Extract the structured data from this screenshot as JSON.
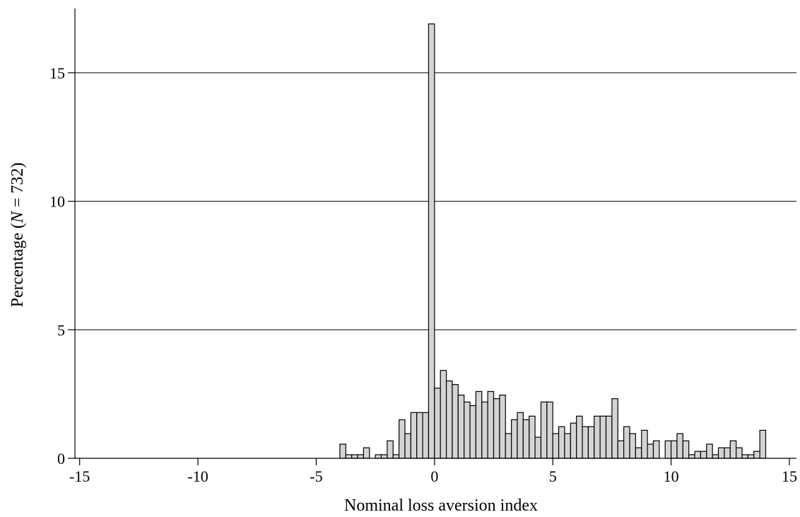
{
  "chart_data": {
    "type": "bar",
    "xlabel": "Nominal loss aversion index",
    "ylabel_parts": [
      "Percentage (",
      "N",
      " = 732)"
    ],
    "xlim": [
      -15.2,
      15.3
    ],
    "ylim": [
      0,
      17.5
    ],
    "x_ticks": [
      -15,
      -10,
      -5,
      0,
      5,
      10,
      15
    ],
    "y_ticks": [
      0,
      5,
      10,
      15
    ],
    "grid": "horizontal",
    "bin_width": 0.25,
    "colors": {
      "bar_fill": "#d4d4d4",
      "bar_edge": "#000000"
    },
    "bins": [
      [
        -3.875,
        0.55
      ],
      [
        -3.625,
        0.14
      ],
      [
        -3.375,
        0.14
      ],
      [
        -3.125,
        0.14
      ],
      [
        -2.875,
        0.41
      ],
      [
        -2.375,
        0.14
      ],
      [
        -2.125,
        0.14
      ],
      [
        -1.875,
        0.68
      ],
      [
        -1.625,
        0.14
      ],
      [
        -1.375,
        1.5
      ],
      [
        -1.125,
        0.96
      ],
      [
        -0.875,
        1.78
      ],
      [
        -0.625,
        1.78
      ],
      [
        -0.375,
        1.78
      ],
      [
        -0.125,
        16.9
      ],
      [
        0.125,
        2.73
      ],
      [
        0.375,
        3.42
      ],
      [
        0.625,
        3.01
      ],
      [
        0.875,
        2.87
      ],
      [
        1.125,
        2.46
      ],
      [
        1.375,
        2.19
      ],
      [
        1.625,
        2.05
      ],
      [
        1.875,
        2.6
      ],
      [
        2.125,
        2.19
      ],
      [
        2.375,
        2.6
      ],
      [
        2.625,
        2.32
      ],
      [
        2.875,
        2.46
      ],
      [
        3.125,
        0.96
      ],
      [
        3.375,
        1.5
      ],
      [
        3.625,
        1.78
      ],
      [
        3.875,
        1.5
      ],
      [
        4.125,
        1.64
      ],
      [
        4.375,
        0.82
      ],
      [
        4.625,
        2.19
      ],
      [
        4.875,
        2.19
      ],
      [
        5.125,
        0.96
      ],
      [
        5.375,
        1.23
      ],
      [
        5.625,
        0.96
      ],
      [
        5.875,
        1.37
      ],
      [
        6.125,
        1.64
      ],
      [
        6.375,
        1.23
      ],
      [
        6.625,
        1.23
      ],
      [
        6.875,
        1.64
      ],
      [
        7.125,
        1.64
      ],
      [
        7.375,
        1.64
      ],
      [
        7.625,
        2.32
      ],
      [
        7.875,
        0.68
      ],
      [
        8.125,
        1.23
      ],
      [
        8.375,
        0.96
      ],
      [
        8.625,
        0.41
      ],
      [
        8.875,
        1.09
      ],
      [
        9.125,
        0.55
      ],
      [
        9.375,
        0.68
      ],
      [
        9.875,
        0.68
      ],
      [
        10.125,
        0.68
      ],
      [
        10.375,
        0.96
      ],
      [
        10.625,
        0.68
      ],
      [
        10.875,
        0.14
      ],
      [
        11.125,
        0.27
      ],
      [
        11.375,
        0.27
      ],
      [
        11.625,
        0.55
      ],
      [
        11.875,
        0.14
      ],
      [
        12.125,
        0.41
      ],
      [
        12.375,
        0.41
      ],
      [
        12.625,
        0.68
      ],
      [
        12.875,
        0.41
      ],
      [
        13.125,
        0.14
      ],
      [
        13.375,
        0.14
      ],
      [
        13.625,
        0.27
      ],
      [
        13.875,
        1.09
      ]
    ]
  }
}
